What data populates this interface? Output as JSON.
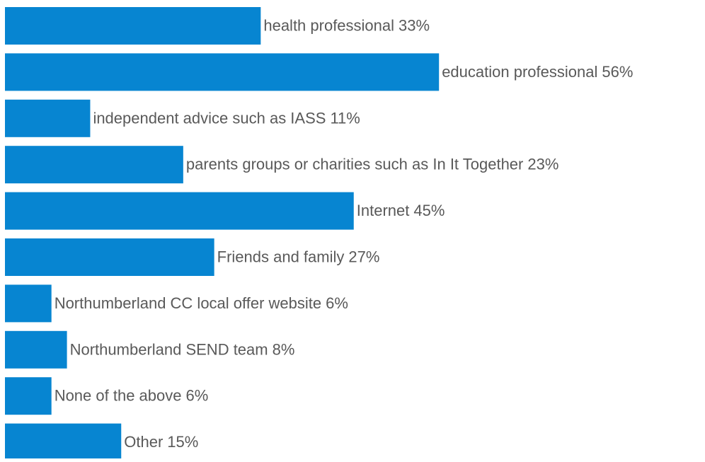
{
  "chart_data": {
    "type": "bar",
    "orientation": "horizontal",
    "categories": [
      "health professional",
      "education professional",
      "independent advice such as IASS",
      "parents groups or charities such as In It Together",
      "Internet",
      "Friends and family",
      "Northumberland CC local offer website",
      "Northumberland SEND team",
      "None of the above",
      "Other"
    ],
    "values": [
      33,
      56,
      11,
      23,
      45,
      27,
      6,
      8,
      6,
      15
    ],
    "value_labels": [
      "33%",
      "56%",
      "11%",
      "23%",
      "45%",
      "27%",
      "6%",
      "8%",
      "6%",
      "15%"
    ],
    "color": "#0785d1"
  }
}
